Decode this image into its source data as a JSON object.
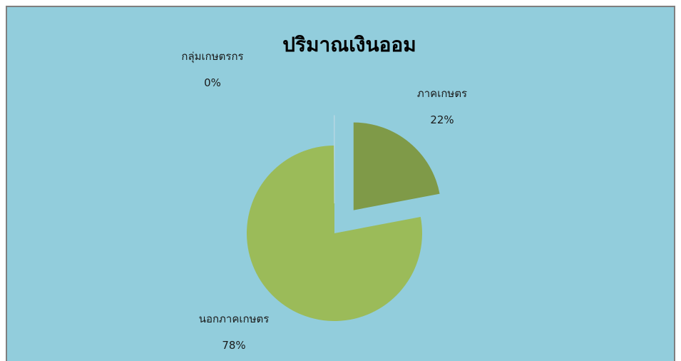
{
  "chart_data": {
    "type": "pie",
    "title": "ปริมาณเงินออม",
    "categories": [
      "ภาคเกษตร",
      "นอกภาคเกษตร",
      "กลุ่มเกษตรกร"
    ],
    "values": [
      22,
      78,
      0
    ],
    "value_labels": [
      "22%",
      "78%",
      "0%"
    ],
    "exploded": [
      true,
      false,
      true
    ],
    "colors": [
      "#7f9a48",
      "#9bbb59",
      "#b7d7e3"
    ],
    "background": "#92cddc",
    "legend": "none",
    "data_labels": "category and percent"
  }
}
